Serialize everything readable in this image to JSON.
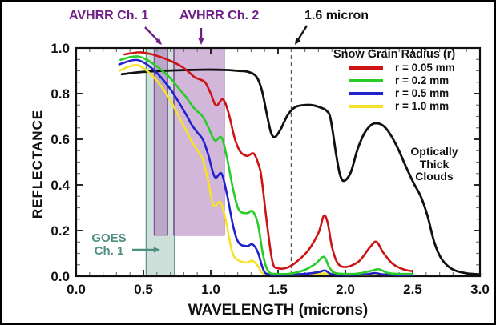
{
  "chart_data": {
    "type": "line",
    "title": "",
    "xlabel": "WAVELENGTH (microns)",
    "ylabel": "REFLECTANCE",
    "xlim": [
      0.0,
      3.0
    ],
    "ylim": [
      0.0,
      1.0
    ],
    "grid": false,
    "x_major_ticks": [
      0.0,
      0.5,
      1.0,
      1.5,
      2.0,
      2.5,
      3.0
    ],
    "x_tick_labels": [
      "0.0",
      "0.5",
      "1.0",
      "1.5",
      "2.0",
      "2.5",
      "3.0"
    ],
    "x_minor_step": 0.1,
    "y_major_ticks": [
      0.0,
      0.2,
      0.4,
      0.6,
      0.8,
      1.0
    ],
    "y_tick_labels": [
      "0.0",
      "0.2",
      "0.4",
      "0.6",
      "0.8",
      "1.0"
    ],
    "y_minor_step": 0.05,
    "colors": {
      "axis": "#111111",
      "purple_text": "#6e1f86",
      "teal_text": "#4e8f80",
      "dashed_line": "#5a5a5a",
      "band_purple_fill": "rgba(168,112,183,0.50)",
      "band_purple_stroke": "#8a4a9b",
      "band_teal_fill": "rgba(146,187,172,0.45)",
      "band_teal_stroke": "#639a8d"
    },
    "legend": {
      "title": "Snow Grain Radius (r)",
      "position": "upper-right-inside",
      "items": [
        {
          "label": "r = 0.05 mm",
          "color": "#cc1414"
        },
        {
          "label": "r = 0.2 mm",
          "color": "#27cc27"
        },
        {
          "label": "r = 0.5 mm",
          "color": "#2222cc"
        },
        {
          "label": "r = 1.0 mm",
          "color": "#f5e229"
        }
      ]
    },
    "bands": [
      {
        "name": "GOES Ch. 1",
        "x0": 0.52,
        "x1": 0.73,
        "y0": 0.0,
        "y1": 1.0,
        "fill_key": "band_teal_fill",
        "stroke_key": "band_teal_stroke"
      },
      {
        "name": "AVHRR Ch. 1",
        "x0": 0.58,
        "x1": 0.68,
        "y0": 0.18,
        "y1": 1.0,
        "fill_key": "band_purple_fill",
        "stroke_key": "band_purple_stroke"
      },
      {
        "name": "AVHRR Ch. 2",
        "x0": 0.725,
        "x1": 1.1,
        "y0": 0.18,
        "y1": 1.0,
        "fill_key": "band_purple_fill",
        "stroke_key": "band_purple_stroke"
      }
    ],
    "vline": {
      "x": 1.6,
      "style": "dashed",
      "label": "1.6 micron"
    },
    "annotations": {
      "avhrr1_label": "AVHRR Ch. 1",
      "avhrr2_label": "AVHRR Ch. 2",
      "vline_label": "1.6 micron",
      "goes_line1": "GOES",
      "goes_line2": "Ch. 1",
      "clouds_line1": "Optically",
      "clouds_line2": "Thick",
      "clouds_line3": "Clouds"
    },
    "series": [
      {
        "name": "r = 0.05 mm",
        "color": "#cc1414",
        "width": 2.6,
        "points": [
          [
            0.36,
            0.972
          ],
          [
            0.42,
            0.978
          ],
          [
            0.48,
            0.981
          ],
          [
            0.55,
            0.974
          ],
          [
            0.62,
            0.962
          ],
          [
            0.7,
            0.944
          ],
          [
            0.78,
            0.92
          ],
          [
            0.84,
            0.893
          ],
          [
            0.88,
            0.872
          ],
          [
            0.92,
            0.862
          ],
          [
            0.96,
            0.848
          ],
          [
            1.0,
            0.8
          ],
          [
            1.04,
            0.748
          ],
          [
            1.09,
            0.775
          ],
          [
            1.13,
            0.72
          ],
          [
            1.18,
            0.6
          ],
          [
            1.22,
            0.545
          ],
          [
            1.27,
            0.527
          ],
          [
            1.32,
            0.537
          ],
          [
            1.36,
            0.48
          ],
          [
            1.38,
            0.42
          ],
          [
            1.42,
            0.22
          ],
          [
            1.46,
            0.06
          ],
          [
            1.5,
            0.035
          ],
          [
            1.56,
            0.036
          ],
          [
            1.62,
            0.055
          ],
          [
            1.72,
            0.11
          ],
          [
            1.8,
            0.19
          ],
          [
            1.84,
            0.265
          ],
          [
            1.87,
            0.23
          ],
          [
            1.9,
            0.13
          ],
          [
            1.94,
            0.06
          ],
          [
            2.0,
            0.04
          ],
          [
            2.1,
            0.065
          ],
          [
            2.18,
            0.125
          ],
          [
            2.23,
            0.151
          ],
          [
            2.28,
            0.105
          ],
          [
            2.35,
            0.055
          ],
          [
            2.43,
            0.03
          ],
          [
            2.5,
            0.022
          ]
        ]
      },
      {
        "name": "r = 0.2 mm",
        "color": "#27cc27",
        "width": 2.6,
        "points": [
          [
            0.33,
            0.948
          ],
          [
            0.4,
            0.96
          ],
          [
            0.46,
            0.963
          ],
          [
            0.52,
            0.95
          ],
          [
            0.58,
            0.928
          ],
          [
            0.64,
            0.9
          ],
          [
            0.7,
            0.868
          ],
          [
            0.76,
            0.825
          ],
          [
            0.82,
            0.782
          ],
          [
            0.86,
            0.748
          ],
          [
            0.9,
            0.722
          ],
          [
            0.94,
            0.7
          ],
          [
            0.98,
            0.655
          ],
          [
            1.03,
            0.595
          ],
          [
            1.08,
            0.608
          ],
          [
            1.12,
            0.52
          ],
          [
            1.17,
            0.37
          ],
          [
            1.21,
            0.29
          ],
          [
            1.27,
            0.276
          ],
          [
            1.31,
            0.285
          ],
          [
            1.35,
            0.23
          ],
          [
            1.39,
            0.09
          ],
          [
            1.43,
            0.02
          ],
          [
            1.5,
            0.01
          ],
          [
            1.6,
            0.012
          ],
          [
            1.7,
            0.028
          ],
          [
            1.78,
            0.055
          ],
          [
            1.84,
            0.085
          ],
          [
            1.88,
            0.04
          ],
          [
            1.92,
            0.015
          ],
          [
            2.0,
            0.01
          ],
          [
            2.1,
            0.012
          ],
          [
            2.2,
            0.025
          ],
          [
            2.25,
            0.03
          ],
          [
            2.32,
            0.014
          ],
          [
            2.4,
            0.01
          ],
          [
            2.5,
            0.01
          ]
        ]
      },
      {
        "name": "r = 0.5 mm",
        "color": "#2222cc",
        "width": 2.6,
        "points": [
          [
            0.32,
            0.928
          ],
          [
            0.4,
            0.944
          ],
          [
            0.46,
            0.947
          ],
          [
            0.52,
            0.93
          ],
          [
            0.58,
            0.902
          ],
          [
            0.64,
            0.865
          ],
          [
            0.7,
            0.82
          ],
          [
            0.76,
            0.765
          ],
          [
            0.82,
            0.705
          ],
          [
            0.86,
            0.662
          ],
          [
            0.9,
            0.63
          ],
          [
            0.94,
            0.6
          ],
          [
            0.98,
            0.535
          ],
          [
            1.03,
            0.435
          ],
          [
            1.08,
            0.45
          ],
          [
            1.12,
            0.36
          ],
          [
            1.17,
            0.21
          ],
          [
            1.21,
            0.145
          ],
          [
            1.27,
            0.132
          ],
          [
            1.31,
            0.14
          ],
          [
            1.35,
            0.105
          ],
          [
            1.39,
            0.03
          ],
          [
            1.43,
            0.008
          ],
          [
            1.55,
            0.006
          ],
          [
            1.7,
            0.01
          ],
          [
            1.8,
            0.018
          ],
          [
            1.85,
            0.025
          ],
          [
            1.9,
            0.008
          ],
          [
            2.0,
            0.006
          ],
          [
            2.15,
            0.008
          ],
          [
            2.22,
            0.014
          ],
          [
            2.28,
            0.008
          ],
          [
            2.4,
            0.005
          ],
          [
            2.5,
            0.005
          ]
        ]
      },
      {
        "name": "r = 1.0 mm",
        "color": "#f5e229",
        "width": 2.6,
        "points": [
          [
            0.32,
            0.9
          ],
          [
            0.4,
            0.92
          ],
          [
            0.46,
            0.924
          ],
          [
            0.52,
            0.903
          ],
          [
            0.58,
            0.87
          ],
          [
            0.64,
            0.826
          ],
          [
            0.7,
            0.77
          ],
          [
            0.76,
            0.703
          ],
          [
            0.82,
            0.635
          ],
          [
            0.86,
            0.588
          ],
          [
            0.9,
            0.552
          ],
          [
            0.94,
            0.512
          ],
          [
            0.98,
            0.42
          ],
          [
            1.02,
            0.31
          ],
          [
            1.07,
            0.325
          ],
          [
            1.11,
            0.25
          ],
          [
            1.16,
            0.105
          ],
          [
            1.21,
            0.068
          ],
          [
            1.27,
            0.06
          ],
          [
            1.31,
            0.068
          ],
          [
            1.35,
            0.045
          ],
          [
            1.39,
            0.012
          ],
          [
            1.5,
            0.008
          ],
          [
            1.7,
            0.008
          ],
          [
            1.85,
            0.012
          ],
          [
            2.0,
            0.006
          ],
          [
            2.25,
            0.008
          ],
          [
            2.4,
            0.006
          ],
          [
            2.5,
            0.006
          ]
        ]
      },
      {
        "name": "Optically Thick Clouds",
        "color": "#111111",
        "width": 2.8,
        "points": [
          [
            0.34,
            0.885
          ],
          [
            0.42,
            0.891
          ],
          [
            0.52,
            0.896
          ],
          [
            0.65,
            0.9
          ],
          [
            0.8,
            0.903
          ],
          [
            0.95,
            0.905
          ],
          [
            1.1,
            0.904
          ],
          [
            1.2,
            0.9
          ],
          [
            1.28,
            0.895
          ],
          [
            1.34,
            0.874
          ],
          [
            1.38,
            0.814
          ],
          [
            1.42,
            0.7
          ],
          [
            1.45,
            0.625
          ],
          [
            1.48,
            0.611
          ],
          [
            1.52,
            0.645
          ],
          [
            1.57,
            0.705
          ],
          [
            1.62,
            0.738
          ],
          [
            1.67,
            0.748
          ],
          [
            1.75,
            0.75
          ],
          [
            1.82,
            0.738
          ],
          [
            1.86,
            0.725
          ],
          [
            1.89,
            0.69
          ],
          [
            1.93,
            0.54
          ],
          [
            1.96,
            0.445
          ],
          [
            1.99,
            0.418
          ],
          [
            2.04,
            0.455
          ],
          [
            2.09,
            0.555
          ],
          [
            2.14,
            0.625
          ],
          [
            2.19,
            0.662
          ],
          [
            2.23,
            0.67
          ],
          [
            2.28,
            0.66
          ],
          [
            2.33,
            0.625
          ],
          [
            2.39,
            0.56
          ],
          [
            2.45,
            0.48
          ],
          [
            2.51,
            0.405
          ],
          [
            2.56,
            0.35
          ],
          [
            2.61,
            0.265
          ],
          [
            2.66,
            0.15
          ],
          [
            2.71,
            0.08
          ],
          [
            2.77,
            0.04
          ],
          [
            2.83,
            0.022
          ],
          [
            2.91,
            0.012
          ],
          [
            3.0,
            0.008
          ]
        ]
      }
    ]
  }
}
